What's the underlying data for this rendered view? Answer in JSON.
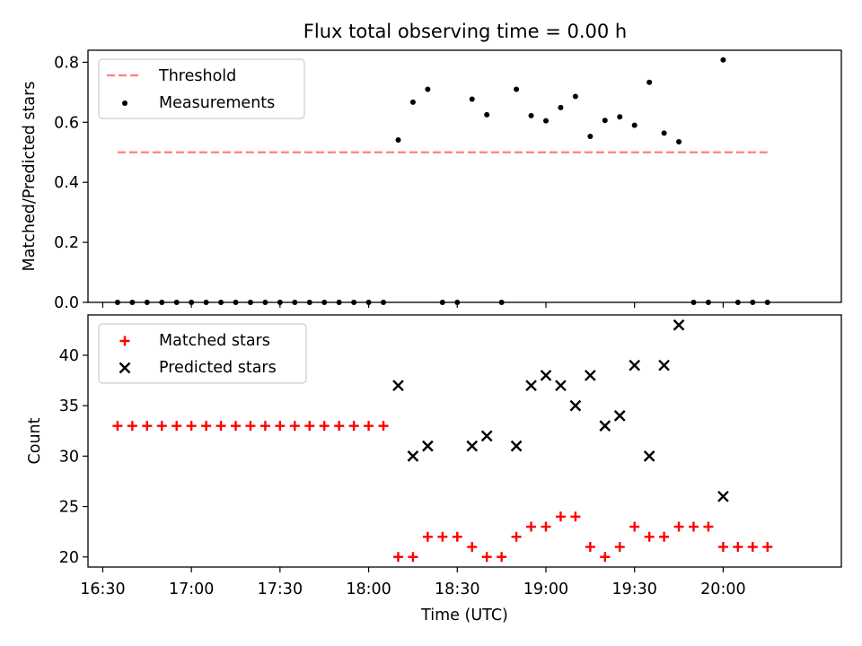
{
  "title": "Flux total observing time = 0.00 h",
  "chart_data": [
    {
      "type": "scatter",
      "ylabel": "Matched/Predicted stars",
      "ylim": [
        0,
        0.84
      ],
      "yticks": [
        0.0,
        0.2,
        0.4,
        0.6,
        0.8
      ],
      "ytick_labels": [
        "0.0",
        "0.2",
        "0.4",
        "0.6",
        "0.8"
      ],
      "legend": {
        "placement": "upper-left",
        "entries": [
          "Threshold",
          "Measurements"
        ]
      },
      "threshold": {
        "name": "Threshold",
        "y": 0.5,
        "x_start": "16:35",
        "x_end": "20:15",
        "color": "#ff7f7f",
        "style": "dashed"
      },
      "series": [
        {
          "name": "Measurements",
          "color": "#000000",
          "marker": "dot",
          "x": [
            "16:35",
            "16:40",
            "16:45",
            "16:50",
            "16:55",
            "17:00",
            "17:05",
            "17:10",
            "17:15",
            "17:20",
            "17:25",
            "17:30",
            "17:35",
            "17:40",
            "17:45",
            "17:50",
            "17:55",
            "18:00",
            "18:05",
            "18:10",
            "18:15",
            "18:20",
            "18:25",
            "18:30",
            "18:35",
            "18:40",
            "18:45",
            "18:50",
            "18:55",
            "19:00",
            "19:05",
            "19:10",
            "19:15",
            "19:20",
            "19:25",
            "19:30",
            "19:35",
            "19:40",
            "19:45",
            "19:50",
            "19:55",
            "20:00",
            "20:05",
            "20:10",
            "20:15"
          ],
          "y": [
            0,
            0,
            0,
            0,
            0,
            0,
            0,
            0,
            0,
            0,
            0,
            0,
            0,
            0,
            0,
            0,
            0,
            0,
            0,
            0.541,
            0.667,
            0.71,
            0,
            0,
            0.677,
            0.625,
            0,
            0.71,
            0.622,
            0.605,
            0.649,
            0.686,
            0.553,
            0.606,
            0.618,
            0.59,
            0.733,
            0.564,
            0.535,
            0,
            0,
            0.808,
            0,
            0,
            0
          ]
        }
      ]
    },
    {
      "type": "scatter",
      "xlabel": "Time (UTC)",
      "ylabel": "Count",
      "ylim": [
        19,
        44
      ],
      "yticks": [
        20,
        25,
        30,
        35,
        40
      ],
      "ytick_labels": [
        "20",
        "25",
        "30",
        "35",
        "40"
      ],
      "xticks": [
        "16:30",
        "17:00",
        "17:30",
        "18:00",
        "18:30",
        "19:00",
        "19:30",
        "20:00"
      ],
      "xlim": [
        "16:25",
        "20:40"
      ],
      "legend": {
        "placement": "upper-left",
        "entries": [
          "Matched stars",
          "Predicted stars"
        ]
      },
      "series": [
        {
          "name": "Matched stars",
          "color": "#ff0000",
          "marker": "plus",
          "x": [
            "16:35",
            "16:40",
            "16:45",
            "16:50",
            "16:55",
            "17:00",
            "17:05",
            "17:10",
            "17:15",
            "17:20",
            "17:25",
            "17:30",
            "17:35",
            "17:40",
            "17:45",
            "17:50",
            "17:55",
            "18:00",
            "18:05",
            "18:10",
            "18:15",
            "18:20",
            "18:25",
            "18:30",
            "18:35",
            "18:40",
            "18:45",
            "18:50",
            "18:55",
            "19:00",
            "19:05",
            "19:10",
            "19:15",
            "19:20",
            "19:25",
            "19:30",
            "19:35",
            "19:40",
            "19:45",
            "19:50",
            "19:55",
            "20:00",
            "20:05",
            "20:10",
            "20:15"
          ],
          "y": [
            33,
            33,
            33,
            33,
            33,
            33,
            33,
            33,
            33,
            33,
            33,
            33,
            33,
            33,
            33,
            33,
            33,
            33,
            33,
            20,
            20,
            22,
            22,
            22,
            21,
            20,
            20,
            22,
            23,
            23,
            24,
            24,
            21,
            20,
            21,
            23,
            22,
            22,
            23,
            23,
            23,
            21,
            21,
            21,
            21
          ]
        },
        {
          "name": "Predicted stars",
          "color": "#000000",
          "marker": "x",
          "x": [
            "18:10",
            "18:15",
            "18:20",
            "18:35",
            "18:40",
            "18:50",
            "18:55",
            "19:00",
            "19:05",
            "19:10",
            "19:15",
            "19:20",
            "19:25",
            "19:30",
            "19:35",
            "19:40",
            "19:45",
            "20:00"
          ],
          "y": [
            37,
            30,
            31,
            31,
            32,
            31,
            37,
            38,
            37,
            35,
            38,
            33,
            34,
            39,
            30,
            39,
            43,
            26
          ]
        }
      ]
    }
  ]
}
